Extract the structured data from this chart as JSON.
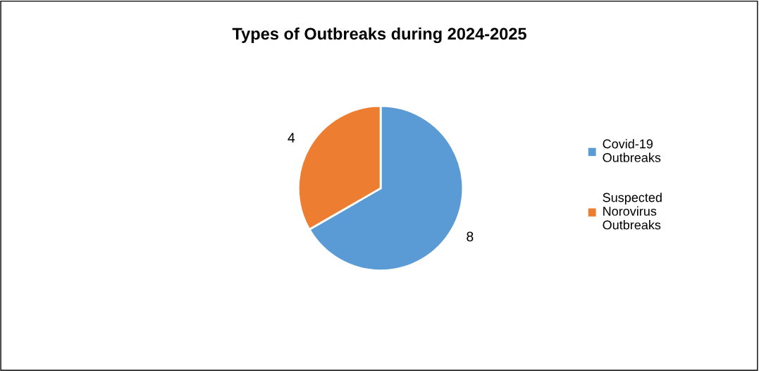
{
  "chart_data": {
    "type": "pie",
    "title": "Types of Outbreaks during 2024-2025",
    "categories": [
      "Covid-19 Outbreaks",
      "Suspected Norovirus Outbreaks"
    ],
    "values": [
      8,
      4
    ],
    "colors": [
      "#5b9bd5",
      "#ed7d31"
    ],
    "data_labels": true,
    "legend": "right"
  }
}
